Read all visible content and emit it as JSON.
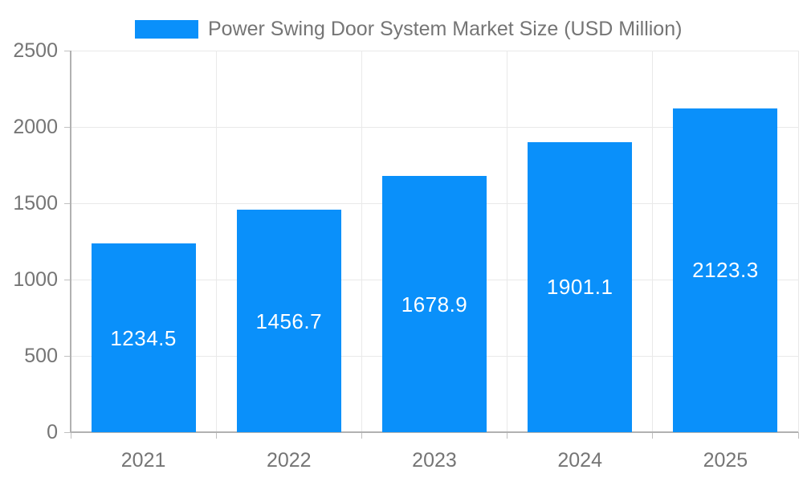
{
  "chart_data": {
    "type": "bar",
    "title": "Power Swing Door System Market Size (USD Million)",
    "legend": [
      "Power Swing Door System Market Size (USD Million)"
    ],
    "legend_position": "top",
    "categories": [
      "2021",
      "2022",
      "2023",
      "2024",
      "2025"
    ],
    "values": [
      1234.5,
      1456.7,
      1678.9,
      1901.1,
      2123.3
    ],
    "data_labels": [
      "1234.5",
      "1456.7",
      "1678.9",
      "1901.1",
      "2123.3"
    ],
    "xlabel": "",
    "ylabel": "",
    "ylim": [
      0,
      2500
    ],
    "yticks": [
      "0",
      "500",
      "1000",
      "1500",
      "2000",
      "2500"
    ],
    "grid": true,
    "colors": {
      "bar": "#0a90fa",
      "bar_label_text": "#ffffff",
      "axis_text": "#757575",
      "legend_text": "#757575",
      "grid_line": "#e9e9e9",
      "axis_line": "#b1b1b1",
      "background": "#ffffff"
    }
  }
}
